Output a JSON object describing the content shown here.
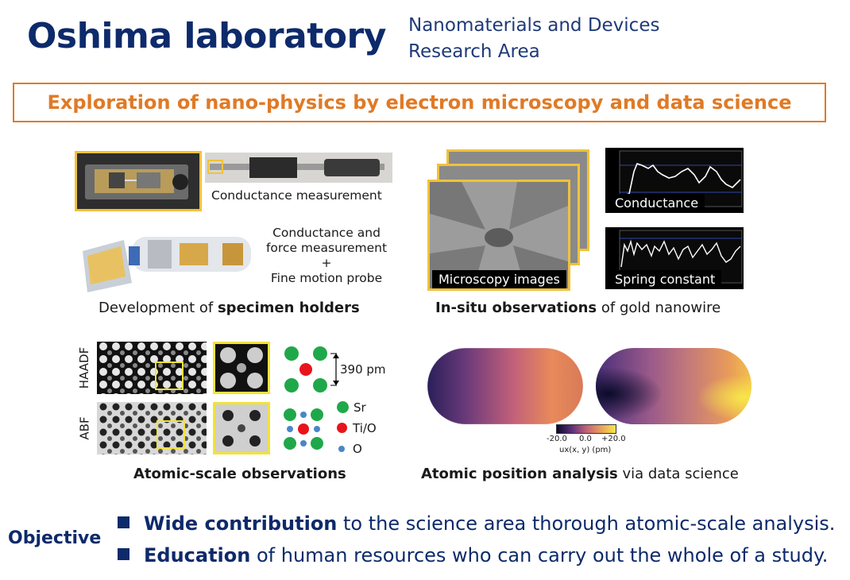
{
  "header": {
    "lab_title": "Oshima laboratory",
    "area_line1": "Nanomaterials and Devices",
    "area_line2": "Research Area"
  },
  "banner": {
    "text": "Exploration of nano-physics by electron microscopy and data science"
  },
  "holders": {
    "conductance_label": "Conductance measurement",
    "probe_line1": "Conductance and",
    "probe_line2": "force measurement",
    "probe_line3": "+",
    "probe_line4": "Fine motion probe",
    "caption_prefix": "Development of ",
    "caption_bold": "specimen holders"
  },
  "insitu": {
    "microscopy_label": "Microscopy images",
    "conductance_graph_label": "Conductance",
    "spring_label": "Spring constant",
    "caption_bold": "In-situ observations",
    "caption_suffix": " of gold nanowire"
  },
  "atomic": {
    "haadf_label": "HAADF",
    "abf_label": "ABF",
    "spacing_label": "390 pm",
    "legend_sr": "Sr",
    "legend_tio": "Ti/O",
    "legend_o": "O",
    "caption": "Atomic-scale observations"
  },
  "analysis": {
    "colorbar_min": "-20.0",
    "colorbar_mid": "0.0",
    "colorbar_max": "+20.0",
    "colorbar_label": "ux(x, y) (pm)",
    "caption_bold": "Atomic position analysis",
    "caption_suffix": " via data science"
  },
  "objective": {
    "label": "Objective",
    "item1_bold": "Wide contribution",
    "item1_rest": " to the science area thorough atomic-scale analysis.",
    "item2_bold": "Education",
    "item2_rest": " of human resources who can carry out the whole of a study."
  },
  "colors": {
    "navy": "#0d2a6b",
    "orange": "#e07a26",
    "yellow_frame": "#f0c23a",
    "sr_green": "#1fa84a",
    "tio_red": "#e8141c",
    "o_blue": "#4a86c8"
  }
}
